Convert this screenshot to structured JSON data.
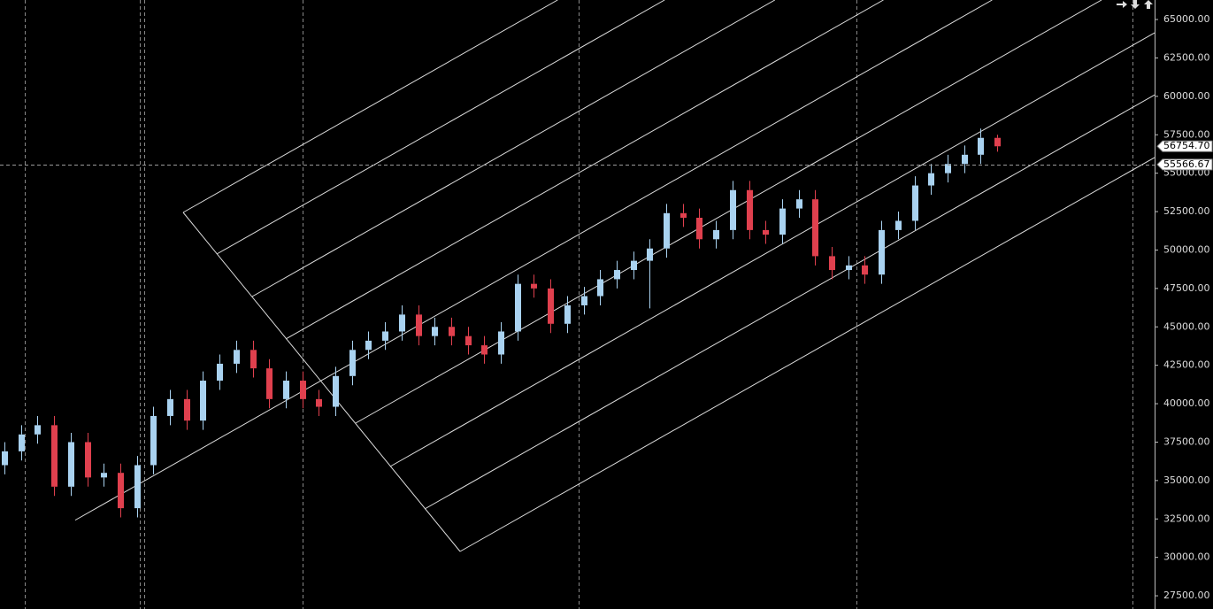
{
  "chart_data": {
    "type": "candlestick",
    "categories": [
      null,
      null,
      null,
      null,
      null,
      null,
      null,
      null,
      null,
      null,
      null,
      null,
      null,
      null,
      null,
      null,
      null,
      null,
      null,
      null,
      null,
      null,
      null,
      null,
      null,
      null,
      null,
      null,
      null,
      null,
      null,
      null,
      null,
      null,
      null,
      null,
      null,
      null,
      null,
      null,
      null,
      null,
      null,
      null,
      null,
      null,
      null,
      null,
      null,
      null,
      null,
      null,
      null,
      null,
      null,
      null,
      null,
      null,
      null,
      null,
      null
    ],
    "open": [
      36000,
      36900,
      38000,
      38600,
      34600,
      37500,
      35200,
      35500,
      33200,
      36000,
      39200,
      40300,
      38900,
      41500,
      42600,
      43500,
      42300,
      40300,
      41500,
      40300,
      39800,
      41800,
      43500,
      44100,
      44700,
      45800,
      44400,
      45000,
      44400,
      43800,
      43200,
      44700,
      47800,
      47500,
      45200,
      46400,
      47000,
      48100,
      48700,
      49300,
      50100,
      52400,
      52100,
      50700,
      51300,
      53900,
      51300,
      51000,
      52700,
      53300,
      49600,
      48700,
      49000,
      48400,
      51300,
      51900,
      54200,
      55000,
      55600,
      56200,
      57300
    ],
    "high": [
      37500,
      38600,
      39200,
      39200,
      38100,
      38100,
      36100,
      36100,
      36600,
      39800,
      40900,
      40900,
      42100,
      43200,
      44100,
      44100,
      42900,
      42100,
      42100,
      40900,
      42400,
      44100,
      44700,
      45300,
      46400,
      46400,
      45600,
      45600,
      45000,
      44400,
      45300,
      48400,
      48400,
      48100,
      47000,
      47600,
      48700,
      49300,
      49900,
      50700,
      53000,
      53000,
      52700,
      51900,
      54500,
      54500,
      51900,
      53300,
      53900,
      53900,
      50200,
      49600,
      49600,
      51900,
      52500,
      54800,
      55600,
      56200,
      56800,
      57900,
      57500
    ],
    "low": [
      35400,
      36300,
      37400,
      34000,
      34000,
      34600,
      34600,
      32600,
      32600,
      35400,
      38600,
      38300,
      38300,
      40900,
      42000,
      41700,
      39700,
      39700,
      39700,
      39200,
      39200,
      41200,
      42900,
      43500,
      44100,
      43800,
      43800,
      43800,
      43200,
      42600,
      42600,
      44100,
      46900,
      44600,
      44600,
      45800,
      46400,
      47500,
      48100,
      46200,
      49500,
      51500,
      50100,
      50100,
      50700,
      50700,
      50400,
      50400,
      52100,
      49000,
      48100,
      48100,
      47800,
      47800,
      50700,
      51300,
      53600,
      54400,
      55000,
      55600,
      56400
    ],
    "close": [
      36900,
      38000,
      38600,
      34600,
      37500,
      35200,
      35500,
      33200,
      36000,
      39200,
      40300,
      38900,
      41500,
      42600,
      43500,
      42300,
      40300,
      41500,
      40300,
      39800,
      41800,
      43500,
      44100,
      44700,
      45800,
      44400,
      45000,
      44400,
      43800,
      43200,
      44700,
      47800,
      47500,
      45200,
      46400,
      47000,
      48100,
      48700,
      49300,
      50100,
      52400,
      52100,
      50700,
      51300,
      53900,
      51300,
      51000,
      52700,
      53300,
      49600,
      48700,
      49000,
      48400,
      51300,
      51900,
      54200,
      55000,
      55600,
      56200,
      57300,
      56750
    ],
    "up_color": "#a9d2f0",
    "down_color": "#e0404e",
    "ylim": [
      26640,
      66270
    ],
    "yticks": [
      {
        "value": 27500,
        "label": "27500.00"
      },
      {
        "value": 30000,
        "label": "30000.00"
      },
      {
        "value": 32500,
        "label": "32500.00"
      },
      {
        "value": 35000,
        "label": "35000.00"
      },
      {
        "value": 37500,
        "label": "37500.00"
      },
      {
        "value": 40000,
        "label": "40000.00"
      },
      {
        "value": 42500,
        "label": "42500.00"
      },
      {
        "value": 45000,
        "label": "45000.00"
      },
      {
        "value": 47500,
        "label": "47500.00"
      },
      {
        "value": 50000,
        "label": "50000.00"
      },
      {
        "value": 52500,
        "label": "52500.00"
      },
      {
        "value": 55000,
        "label": "55000.00"
      },
      {
        "value": 57500,
        "label": "57500.00"
      },
      {
        "value": 60000,
        "label": "60000.00"
      },
      {
        "value": 62500,
        "label": "62500.00"
      },
      {
        "value": 65000,
        "label": "65000.00"
      }
    ],
    "price_tags": [
      {
        "value": 56754.7,
        "label": "56754.70"
      },
      {
        "value": 55566.67,
        "label": "55566.67"
      }
    ],
    "crosshair": {
      "value": 55566.67
    }
  }
}
